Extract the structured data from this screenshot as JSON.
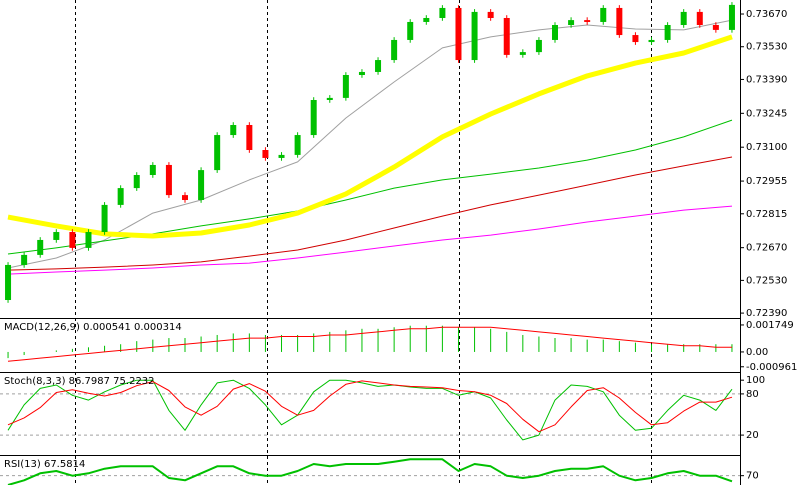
{
  "chart_data": [
    {
      "type": "candlestick",
      "open": [
        0.72446,
        0.72596,
        0.72639,
        0.72703,
        0.72737,
        0.72669,
        0.72737,
        0.72853,
        0.72925,
        0.72981,
        0.73024,
        0.72895,
        0.72874,
        0.73002,
        0.73152,
        0.73195,
        0.73088,
        0.73054,
        0.73067,
        0.73152,
        0.73302,
        0.73311,
        0.73409,
        0.73422,
        0.73473,
        0.73559,
        0.73636,
        0.73653,
        0.73696,
        0.73473,
        0.73679,
        0.73653,
        0.73495,
        0.73507,
        0.73559,
        0.73623,
        0.73644,
        0.73636,
        0.73696,
        0.7358,
        0.7355,
        0.73559,
        0.73623,
        0.73679,
        0.73623,
        0.73602
      ],
      "high": [
        0.72608,
        0.72651,
        0.72715,
        0.72749,
        0.72749,
        0.72749,
        0.72865,
        0.72937,
        0.72993,
        0.73036,
        0.73036,
        0.72907,
        0.73014,
        0.73164,
        0.73207,
        0.73207,
        0.731,
        0.73079,
        0.73164,
        0.73314,
        0.73323,
        0.73421,
        0.73434,
        0.73485,
        0.73571,
        0.73648,
        0.73665,
        0.73708,
        0.73708,
        0.73691,
        0.73691,
        0.73665,
        0.73519,
        0.73571,
        0.73635,
        0.73656,
        0.73656,
        0.73708,
        0.73708,
        0.73592,
        0.73571,
        0.73635,
        0.73691,
        0.73691,
        0.73635,
        0.73721
      ],
      "low": [
        0.72434,
        0.72584,
        0.72627,
        0.72691,
        0.72657,
        0.72657,
        0.72725,
        0.72841,
        0.72913,
        0.72969,
        0.72883,
        0.72862,
        0.72862,
        0.7299,
        0.7314,
        0.73076,
        0.73042,
        0.73042,
        0.73055,
        0.7314,
        0.7329,
        0.73299,
        0.73397,
        0.7341,
        0.73461,
        0.73547,
        0.73624,
        0.73641,
        0.73461,
        0.73461,
        0.73641,
        0.73483,
        0.73483,
        0.73495,
        0.73547,
        0.73611,
        0.73624,
        0.73624,
        0.73568,
        0.73538,
        0.73538,
        0.73547,
        0.73611,
        0.73611,
        0.7359,
        0.7359
      ],
      "close": [
        0.72596,
        0.72639,
        0.72703,
        0.72737,
        0.72669,
        0.72737,
        0.72853,
        0.72925,
        0.72981,
        0.73024,
        0.72895,
        0.72874,
        0.73002,
        0.73152,
        0.73195,
        0.73088,
        0.73054,
        0.73067,
        0.73152,
        0.73302,
        0.73311,
        0.73409,
        0.73422,
        0.73473,
        0.73559,
        0.73636,
        0.73653,
        0.73696,
        0.73473,
        0.73679,
        0.73653,
        0.73495,
        0.73507,
        0.73559,
        0.73623,
        0.73644,
        0.73636,
        0.73696,
        0.7358,
        0.7355,
        0.73559,
        0.73623,
        0.73679,
        0.73623,
        0.73602,
        0.73709
      ],
      "up_color": "#00c000",
      "down_color": "#ff0000",
      "lines": [
        {
          "color": "#a0a0a0",
          "width": 1,
          "x": [
            0,
            3,
            6,
            9,
            12,
            15,
            18,
            21,
            24,
            27,
            30,
            33,
            36,
            39,
            42,
            45
          ],
          "values": [
            0.72583,
            0.72626,
            0.72703,
            0.72818,
            0.72874,
            0.7296,
            0.73037,
            0.73225,
            0.73379,
            0.73525,
            0.73572,
            0.73602,
            0.73623,
            0.73606,
            0.73602,
            0.73644
          ]
        },
        {
          "color": "#00c000",
          "width": 1,
          "x": [
            0,
            3,
            6,
            9,
            12,
            15,
            18,
            21,
            24,
            27,
            30,
            33,
            36,
            39,
            42,
            45
          ],
          "values": [
            0.72643,
            0.72669,
            0.72699,
            0.72729,
            0.72763,
            0.72793,
            0.72827,
            0.72874,
            0.72925,
            0.7296,
            0.72985,
            0.73011,
            0.73045,
            0.73088,
            0.73144,
            0.73216
          ]
        },
        {
          "color": "#d00000",
          "width": 1,
          "x": [
            0,
            3,
            6,
            9,
            12,
            15,
            18,
            21,
            24,
            27,
            30,
            33,
            36,
            39,
            42,
            45
          ],
          "values": [
            0.72574,
            0.72579,
            0.72587,
            0.72596,
            0.72609,
            0.72634,
            0.7266,
            0.72703,
            0.72754,
            0.72805,
            0.72853,
            0.72895,
            0.72938,
            0.72981,
            0.7302,
            0.73058
          ]
        },
        {
          "color": "#ff00ff",
          "width": 1,
          "x": [
            0,
            3,
            6,
            9,
            12,
            15,
            18,
            21,
            24,
            27,
            30,
            33,
            36,
            39,
            42,
            45
          ],
          "values": [
            0.72557,
            0.72566,
            0.72574,
            0.72583,
            0.72596,
            0.72604,
            0.72626,
            0.72651,
            0.72677,
            0.72703,
            0.72724,
            0.7275,
            0.7278,
            0.72805,
            0.72831,
            0.72848
          ]
        },
        {
          "color": "#ffff00",
          "width": 5,
          "x": [
            0,
            3,
            6,
            9,
            12,
            15,
            18,
            21,
            24,
            27,
            30,
            33,
            36,
            39,
            42,
            45
          ],
          "values": [
            0.72801,
            0.72763,
            0.72729,
            0.7272,
            0.72733,
            0.72767,
            0.72818,
            0.729,
            0.73015,
            0.73144,
            0.73242,
            0.73328,
            0.73405,
            0.7346,
            0.73503,
            0.73572
          ]
        }
      ],
      "ylim": [
        0.72369,
        0.7373
      ],
      "yticks": [
        {
          "value": 0.7367,
          "label": "0.73670"
        },
        {
          "value": 0.7353,
          "label": "0.73530"
        },
        {
          "value": 0.7339,
          "label": "0.73390"
        },
        0.73245,
        {
          "value": 0.731,
          "label": "0.73100"
        },
        0.72955,
        0.72815,
        {
          "value": 0.7267,
          "label": "0.72670"
        },
        {
          "value": 0.7253,
          "label": "0.72530"
        },
        {
          "value": 0.7239,
          "label": "0.72390"
        }
      ]
    },
    {
      "type": "indicator",
      "label": "MACD(12,26,9) 0.000541 0.000314",
      "series": [
        {
          "style": "histogram",
          "color": "#00c000",
          "values": [
            -0.0004,
            -0.0002,
            0,
            0.0001,
            0.0002,
            0.0003,
            0.0004,
            0.0005,
            0.0007,
            0.0008,
            0.0009,
            0.0009,
            0.001,
            0.0011,
            0.0012,
            0.0012,
            0.0011,
            0.0011,
            0.0011,
            0.0012,
            0.0013,
            0.0014,
            0.0015,
            0.0015,
            0.0016,
            0.0017,
            0.0017,
            0.0017,
            0.0016,
            0.0016,
            0.0015,
            0.0013,
            0.0011,
            0.001,
            0.0009,
            0.0009,
            0.0008,
            0.0008,
            0.0007,
            0.0006,
            0.0005,
            0.0005,
            0.0005,
            0.0005,
            0.0005,
            0.0005
          ]
        },
        {
          "style": "line",
          "color": "#ff0000",
          "values": [
            -0.0006,
            -0.0005,
            -0.0004,
            -0.0003,
            -0.0002,
            -0.0001,
            0,
            0.0001,
            0.0002,
            0.0003,
            0.0004,
            0.0005,
            0.0006,
            0.0007,
            0.0008,
            0.0009,
            0.0009,
            0.001,
            0.001,
            0.001,
            0.0011,
            0.0011,
            0.0012,
            0.0013,
            0.0014,
            0.0015,
            0.0015,
            0.0016,
            0.0016,
            0.0016,
            0.0016,
            0.0015,
            0.0014,
            0.0013,
            0.0012,
            0.0011,
            0.001,
            0.0009,
            0.0008,
            0.0007,
            0.0006,
            0.0005,
            0.0004,
            0.0004,
            0.0003,
            0.0003
          ]
        }
      ],
      "ylim": [
        -0.0013,
        0.00207
      ],
      "yticks": [
        0.001749,
        {
          "value": 0,
          "label": "0.00"
        },
        -0.000961
      ]
    },
    {
      "type": "indicator",
      "label": "Stoch(8,3,3) 86.7987 75.2232",
      "series": [
        {
          "style": "line",
          "color": "#00c000",
          "values": [
            27,
            64,
            88,
            93,
            78,
            71,
            83,
            93,
            100,
            100,
            56,
            27,
            64,
            96,
            100,
            88,
            64,
            35,
            49,
            83,
            100,
            100,
            96,
            91,
            93,
            90,
            88,
            88,
            78,
            83,
            74,
            42,
            13,
            20,
            71,
            93,
            91,
            83,
            49,
            27,
            30,
            56,
            78,
            71,
            56,
            86.8
          ]
        },
        {
          "style": "line",
          "color": "#ff0000",
          "values": [
            35,
            45,
            60,
            82,
            86,
            81,
            77,
            82,
            92,
            98,
            85,
            61,
            49,
            62,
            87,
            95,
            84,
            62,
            49,
            56,
            77,
            94,
            99,
            96,
            93,
            91,
            90,
            89,
            85,
            83,
            78,
            66,
            43,
            25,
            35,
            61,
            85,
            89,
            74,
            53,
            35,
            38,
            55,
            68,
            68,
            75.2
          ]
        }
      ],
      "levels": [
        80,
        20
      ],
      "ylim": [
        -9,
        109
      ],
      "yticks": [
        100,
        80,
        20
      ]
    },
    {
      "type": "indicator",
      "label": "RSI(13) 67.5814",
      "series": [
        {
          "style": "line",
          "color": "#00c000",
          "width": 2,
          "values": [
            66,
            68,
            71,
            72,
            70,
            71,
            73,
            74,
            74,
            74,
            69,
            68,
            71,
            74,
            74,
            71,
            70,
            70,
            72,
            75,
            74,
            75,
            75,
            75,
            76,
            77,
            77,
            77,
            72,
            75,
            74,
            70,
            69,
            70,
            72,
            73,
            73,
            74,
            70,
            68,
            69,
            71,
            72,
            70,
            70,
            67.58
          ]
        }
      ],
      "levels": [
        70
      ],
      "ylim": [
        66,
        78
      ],
      "yticks": [
        70
      ]
    }
  ]
}
